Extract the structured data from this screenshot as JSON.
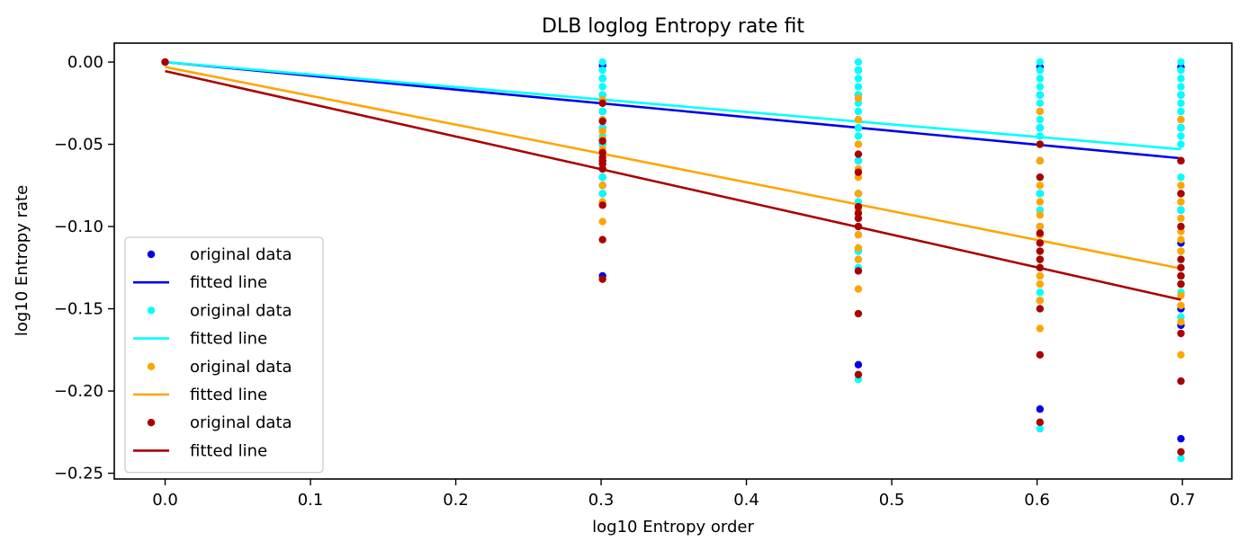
{
  "chart_data": {
    "type": "scatter",
    "title": "DLB loglog Entropy rate fit",
    "xlabel": "log10 Entropy order",
    "ylabel": "log10 Entropy rate",
    "xlim": [
      -0.035,
      0.734
    ],
    "ylim": [
      -0.2535,
      0.0115
    ],
    "xticks": [
      0.0,
      0.1,
      0.2,
      0.3,
      0.4,
      0.5,
      0.6,
      0.7
    ],
    "xtick_labels": [
      "0.0",
      "0.1",
      "0.2",
      "0.3",
      "0.4",
      "0.5",
      "0.6",
      "0.7"
    ],
    "yticks": [
      0.0,
      -0.05,
      -0.1,
      -0.15,
      -0.2,
      -0.25
    ],
    "ytick_labels": [
      "0.00",
      "−0.05",
      "−0.10",
      "−0.15",
      "−0.20",
      "−0.25"
    ],
    "grid": false,
    "legend_position": "lower-left",
    "series": [
      {
        "name": "original data",
        "kind": "points",
        "color": "#0000ee",
        "points": [
          [
            0,
            0
          ],
          [
            0.301,
            -0.002
          ],
          [
            0.301,
            -0.01
          ],
          [
            0.301,
            -0.02
          ],
          [
            0.301,
            -0.03
          ],
          [
            0.301,
            -0.04
          ],
          [
            0.301,
            -0.05
          ],
          [
            0.301,
            -0.06
          ],
          [
            0.301,
            -0.07
          ],
          [
            0.301,
            -0.075
          ],
          [
            0.301,
            -0.08
          ],
          [
            0.301,
            -0.13
          ],
          [
            0.477,
            -0.005
          ],
          [
            0.477,
            -0.02
          ],
          [
            0.477,
            -0.04
          ],
          [
            0.477,
            -0.06
          ],
          [
            0.477,
            -0.08
          ],
          [
            0.477,
            -0.1
          ],
          [
            0.477,
            -0.115
          ],
          [
            0.477,
            -0.184
          ],
          [
            0.602,
            -0.003
          ],
          [
            0.602,
            -0.02
          ],
          [
            0.602,
            -0.04
          ],
          [
            0.602,
            -0.06
          ],
          [
            0.602,
            -0.08
          ],
          [
            0.602,
            -0.1
          ],
          [
            0.602,
            -0.12
          ],
          [
            0.602,
            -0.145
          ],
          [
            0.602,
            -0.211
          ],
          [
            0.699,
            -0.003
          ],
          [
            0.699,
            -0.02
          ],
          [
            0.699,
            -0.04
          ],
          [
            0.699,
            -0.06
          ],
          [
            0.699,
            -0.08
          ],
          [
            0.699,
            -0.09
          ],
          [
            0.699,
            -0.11
          ],
          [
            0.699,
            -0.13
          ],
          [
            0.699,
            -0.15
          ],
          [
            0.699,
            -0.16
          ],
          [
            0.699,
            -0.229
          ]
        ]
      },
      {
        "name": "fitted line",
        "kind": "line",
        "color": "#0000ee",
        "x": [
          0,
          0.699
        ],
        "y": [
          0,
          -0.0585
        ]
      },
      {
        "name": "original data",
        "kind": "points",
        "color": "#00ffff",
        "points": [
          [
            0,
            0
          ],
          [
            0.301,
            0
          ],
          [
            0.301,
            -0.005
          ],
          [
            0.301,
            -0.01
          ],
          [
            0.301,
            -0.015
          ],
          [
            0.301,
            -0.02
          ],
          [
            0.301,
            -0.025
          ],
          [
            0.301,
            -0.03
          ],
          [
            0.301,
            -0.035
          ],
          [
            0.301,
            -0.04
          ],
          [
            0.301,
            -0.045
          ],
          [
            0.301,
            -0.05
          ],
          [
            0.301,
            -0.055
          ],
          [
            0.301,
            -0.06
          ],
          [
            0.301,
            -0.065
          ],
          [
            0.301,
            -0.07
          ],
          [
            0.301,
            -0.075
          ],
          [
            0.301,
            -0.08
          ],
          [
            0.477,
            0
          ],
          [
            0.477,
            -0.005
          ],
          [
            0.477,
            -0.01
          ],
          [
            0.477,
            -0.015
          ],
          [
            0.477,
            -0.02
          ],
          [
            0.477,
            -0.025
          ],
          [
            0.477,
            -0.03
          ],
          [
            0.477,
            -0.035
          ],
          [
            0.477,
            -0.04
          ],
          [
            0.477,
            -0.045
          ],
          [
            0.477,
            -0.05
          ],
          [
            0.477,
            -0.06
          ],
          [
            0.477,
            -0.07
          ],
          [
            0.477,
            -0.08
          ],
          [
            0.477,
            -0.085
          ],
          [
            0.477,
            -0.095
          ],
          [
            0.477,
            -0.105
          ],
          [
            0.477,
            -0.115
          ],
          [
            0.477,
            -0.12
          ],
          [
            0.477,
            -0.125
          ],
          [
            0.477,
            -0.193
          ],
          [
            0.602,
            0
          ],
          [
            0.602,
            -0.005
          ],
          [
            0.602,
            -0.01
          ],
          [
            0.602,
            -0.015
          ],
          [
            0.602,
            -0.02
          ],
          [
            0.602,
            -0.025
          ],
          [
            0.602,
            -0.03
          ],
          [
            0.602,
            -0.035
          ],
          [
            0.602,
            -0.04
          ],
          [
            0.602,
            -0.045
          ],
          [
            0.602,
            -0.05
          ],
          [
            0.602,
            -0.06
          ],
          [
            0.602,
            -0.07
          ],
          [
            0.602,
            -0.08
          ],
          [
            0.602,
            -0.09
          ],
          [
            0.602,
            -0.1
          ],
          [
            0.602,
            -0.105
          ],
          [
            0.602,
            -0.12
          ],
          [
            0.602,
            -0.13
          ],
          [
            0.602,
            -0.14
          ],
          [
            0.602,
            -0.145
          ],
          [
            0.602,
            -0.223
          ],
          [
            0.699,
            0
          ],
          [
            0.699,
            -0.005
          ],
          [
            0.699,
            -0.01
          ],
          [
            0.699,
            -0.015
          ],
          [
            0.699,
            -0.02
          ],
          [
            0.699,
            -0.025
          ],
          [
            0.699,
            -0.03
          ],
          [
            0.699,
            -0.035
          ],
          [
            0.699,
            -0.04
          ],
          [
            0.699,
            -0.045
          ],
          [
            0.699,
            -0.05
          ],
          [
            0.699,
            -0.06
          ],
          [
            0.699,
            -0.07
          ],
          [
            0.699,
            -0.08
          ],
          [
            0.699,
            -0.09
          ],
          [
            0.699,
            -0.1
          ],
          [
            0.699,
            -0.115
          ],
          [
            0.699,
            -0.12
          ],
          [
            0.699,
            -0.13
          ],
          [
            0.699,
            -0.14
          ],
          [
            0.699,
            -0.155
          ],
          [
            0.699,
            -0.241
          ]
        ]
      },
      {
        "name": "fitted line",
        "kind": "line",
        "color": "#00ffff",
        "x": [
          0,
          0.699
        ],
        "y": [
          0,
          -0.053
        ]
      },
      {
        "name": "original data",
        "kind": "points",
        "color": "#ffa500",
        "points": [
          [
            0,
            0
          ],
          [
            0.301,
            -0.023
          ],
          [
            0.301,
            -0.035
          ],
          [
            0.301,
            -0.042
          ],
          [
            0.301,
            -0.047
          ],
          [
            0.301,
            -0.053
          ],
          [
            0.301,
            -0.065
          ],
          [
            0.301,
            -0.075
          ],
          [
            0.301,
            -0.085
          ],
          [
            0.301,
            -0.097
          ],
          [
            0.477,
            -0.022
          ],
          [
            0.477,
            -0.035
          ],
          [
            0.477,
            -0.05
          ],
          [
            0.477,
            -0.065
          ],
          [
            0.477,
            -0.07
          ],
          [
            0.477,
            -0.08
          ],
          [
            0.477,
            -0.09
          ],
          [
            0.477,
            -0.105
          ],
          [
            0.477,
            -0.113
          ],
          [
            0.477,
            -0.12
          ],
          [
            0.477,
            -0.138
          ],
          [
            0.602,
            -0.03
          ],
          [
            0.602,
            -0.05
          ],
          [
            0.602,
            -0.06
          ],
          [
            0.602,
            -0.07
          ],
          [
            0.602,
            -0.075
          ],
          [
            0.602,
            -0.085
          ],
          [
            0.602,
            -0.093
          ],
          [
            0.602,
            -0.1
          ],
          [
            0.602,
            -0.105
          ],
          [
            0.602,
            -0.115
          ],
          [
            0.602,
            -0.12
          ],
          [
            0.602,
            -0.13
          ],
          [
            0.602,
            -0.135
          ],
          [
            0.602,
            -0.145
          ],
          [
            0.602,
            -0.162
          ],
          [
            0.699,
            -0.035
          ],
          [
            0.699,
            -0.06
          ],
          [
            0.699,
            -0.075
          ],
          [
            0.699,
            -0.085
          ],
          [
            0.699,
            -0.095
          ],
          [
            0.699,
            -0.103
          ],
          [
            0.699,
            -0.108
          ],
          [
            0.699,
            -0.115
          ],
          [
            0.699,
            -0.13
          ],
          [
            0.699,
            -0.135
          ],
          [
            0.699,
            -0.142
          ],
          [
            0.699,
            -0.148
          ],
          [
            0.699,
            -0.158
          ],
          [
            0.699,
            -0.178
          ]
        ]
      },
      {
        "name": "fitted line",
        "kind": "line",
        "color": "#ffa500",
        "x": [
          0,
          0.699
        ],
        "y": [
          -0.003,
          -0.1255
        ]
      },
      {
        "name": "original data",
        "kind": "points",
        "color": "#aa0000",
        "points": [
          [
            0,
            0
          ],
          [
            0.301,
            -0.025
          ],
          [
            0.301,
            -0.036
          ],
          [
            0.301,
            -0.048
          ],
          [
            0.301,
            -0.055
          ],
          [
            0.301,
            -0.058
          ],
          [
            0.301,
            -0.06
          ],
          [
            0.301,
            -0.062
          ],
          [
            0.301,
            -0.065
          ],
          [
            0.301,
            -0.087
          ],
          [
            0.301,
            -0.108
          ],
          [
            0.301,
            -0.132
          ],
          [
            0.477,
            -0.056
          ],
          [
            0.477,
            -0.067
          ],
          [
            0.477,
            -0.088
          ],
          [
            0.477,
            -0.092
          ],
          [
            0.477,
            -0.095
          ],
          [
            0.477,
            -0.1
          ],
          [
            0.477,
            -0.127
          ],
          [
            0.477,
            -0.153
          ],
          [
            0.477,
            -0.19
          ],
          [
            0.602,
            -0.05
          ],
          [
            0.602,
            -0.07
          ],
          [
            0.602,
            -0.104
          ],
          [
            0.602,
            -0.11
          ],
          [
            0.602,
            -0.115
          ],
          [
            0.602,
            -0.12
          ],
          [
            0.602,
            -0.125
          ],
          [
            0.602,
            -0.15
          ],
          [
            0.602,
            -0.178
          ],
          [
            0.602,
            -0.219
          ],
          [
            0.699,
            -0.06
          ],
          [
            0.699,
            -0.08
          ],
          [
            0.699,
            -0.1
          ],
          [
            0.699,
            -0.12
          ],
          [
            0.699,
            -0.125
          ],
          [
            0.699,
            -0.13
          ],
          [
            0.699,
            -0.135
          ],
          [
            0.699,
            -0.165
          ],
          [
            0.699,
            -0.194
          ],
          [
            0.699,
            -0.237
          ]
        ]
      },
      {
        "name": "fitted line",
        "kind": "line",
        "color": "#aa0000",
        "x": [
          0,
          0.699
        ],
        "y": [
          -0.0055,
          -0.1445
        ]
      }
    ]
  }
}
